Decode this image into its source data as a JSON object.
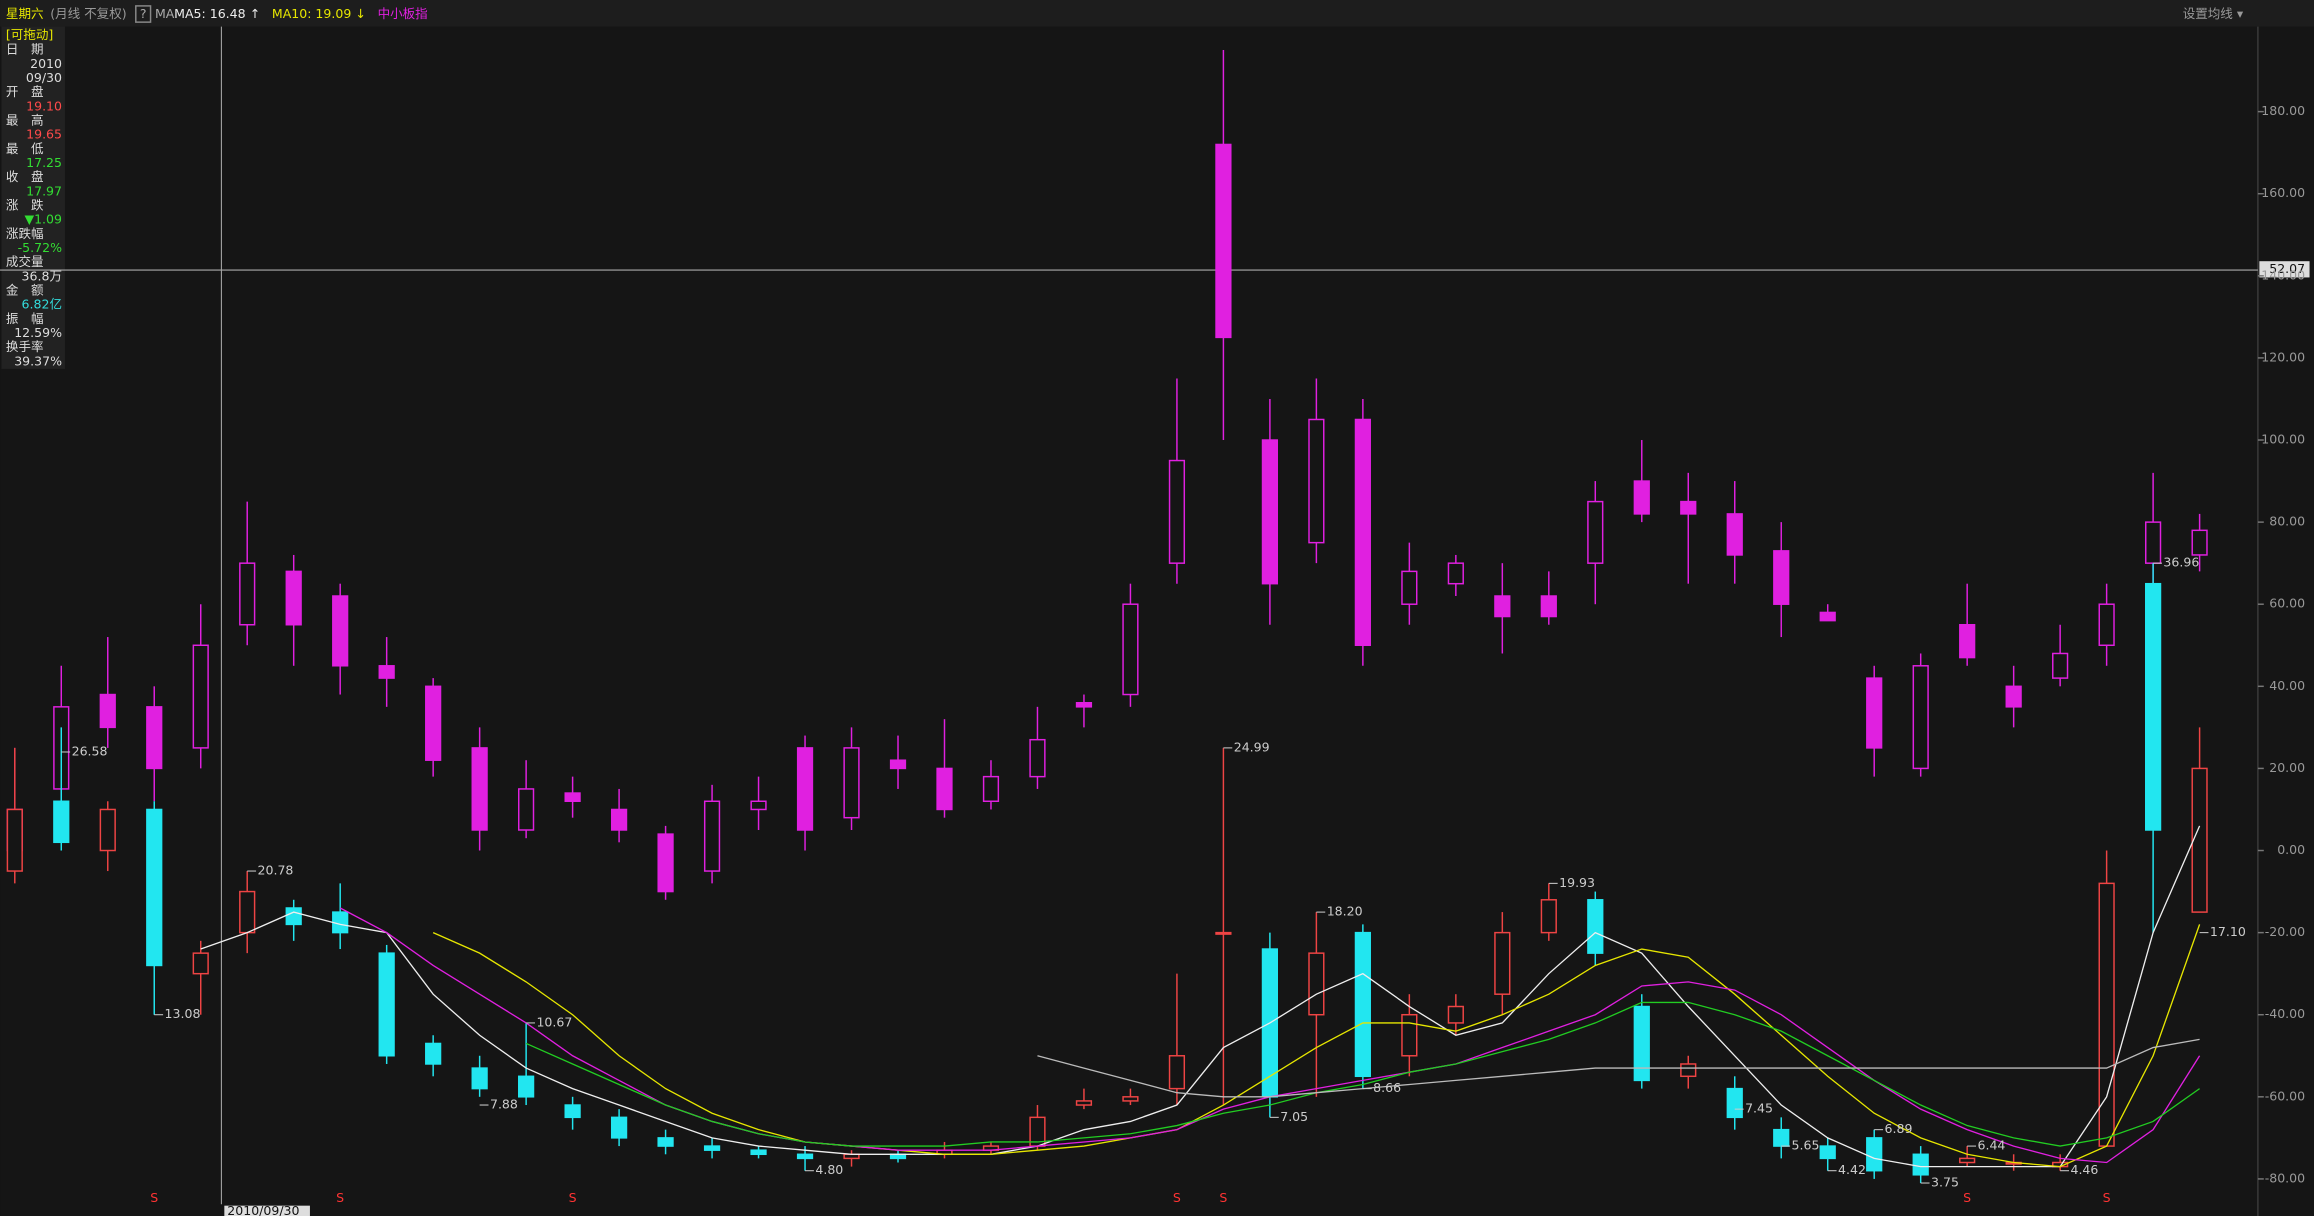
{
  "header": {
    "weekday": "星期六",
    "mode": "(月线 不复权)",
    "help": "?",
    "ma": "MA",
    "settings": "设置均线 ▾"
  },
  "info": {
    "drag": "[可拖动]",
    "items": [
      {
        "label": "日　期",
        "value": "2010",
        "color": "#dddddd"
      },
      {
        "value": "09/30",
        "color": "#dddddd"
      },
      {
        "label": "开　盘",
        "value": "19.10",
        "color": "#ff4a4a"
      },
      {
        "label": "最　高",
        "value": "19.65",
        "color": "#ff4a4a"
      },
      {
        "label": "最　低",
        "value": "17.25",
        "color": "#33dd33"
      },
      {
        "label": "收　盘",
        "value": "17.97",
        "color": "#33dd33"
      },
      {
        "label": "涨　跌",
        "value": "▼1.09",
        "color": "#33dd33"
      },
      {
        "label": "涨跌幅",
        "value": "-5.72%",
        "color": "#33dd33"
      },
      {
        "label": "成交量",
        "value": "36.8万",
        "color": "#dddddd"
      },
      {
        "label": "金　额",
        "value": "6.82亿",
        "color": "#33dddd"
      },
      {
        "label": "振　幅",
        "value": "12.59%",
        "color": "#dddddd"
      },
      {
        "label": "换手率",
        "value": "39.37%",
        "color": "#dddddd"
      }
    ]
  },
  "crosshair": {
    "value": "52.07",
    "date": "2010/09/30"
  },
  "chart_data": {
    "type": "candlestick",
    "ylim": [
      -84,
      200
    ],
    "yticks": [
      {
        "value": 180,
        "label": "180.00"
      },
      {
        "value": 160,
        "label": "160.00"
      },
      {
        "value": 140,
        "label": "140.00"
      },
      {
        "value": 120,
        "label": "120.00"
      },
      {
        "value": 100,
        "label": "100.00"
      },
      {
        "value": 80,
        "label": "80.00"
      },
      {
        "value": 60,
        "label": "60.00"
      },
      {
        "value": 40,
        "label": "40.00"
      },
      {
        "value": 20,
        "label": "20.00"
      },
      {
        "value": 0,
        "label": "0.00"
      },
      {
        "value": -20,
        "label": "-20.00"
      },
      {
        "value": -40,
        "label": "-40.00"
      },
      {
        "value": -60,
        "label": "-60.00"
      },
      {
        "value": -80,
        "label": "-80.00"
      }
    ],
    "candles": [
      {
        "name": "中小板指",
        "up_color": "#e020e0",
        "down_color": "#e020e0",
        "open": [
          0,
          15,
          38,
          35,
          25,
          55,
          68,
          62,
          45,
          40,
          25,
          5,
          14,
          10,
          4,
          -5,
          10,
          25,
          8,
          22,
          20,
          12,
          18,
          36,
          38,
          70,
          172,
          100,
          75,
          105,
          60,
          65,
          62,
          62,
          70,
          90,
          85,
          82,
          73,
          58,
          42,
          20,
          55,
          40,
          42,
          50,
          70,
          72
        ],
        "high": [
          25,
          45,
          52,
          40,
          60,
          85,
          72,
          65,
          52,
          42,
          30,
          22,
          18,
          15,
          6,
          16,
          18,
          28,
          30,
          28,
          32,
          22,
          35,
          38,
          65,
          115,
          195,
          110,
          115,
          110,
          75,
          72,
          70,
          68,
          90,
          100,
          92,
          90,
          80,
          60,
          45,
          48,
          65,
          45,
          55,
          65,
          92,
          82
        ],
        "low": [
          -5,
          10,
          25,
          12,
          20,
          50,
          45,
          38,
          35,
          18,
          0,
          3,
          8,
          2,
          -12,
          -8,
          5,
          0,
          5,
          15,
          8,
          10,
          15,
          30,
          35,
          65,
          100,
          55,
          70,
          45,
          55,
          62,
          48,
          55,
          60,
          80,
          65,
          65,
          52,
          56,
          18,
          18,
          45,
          30,
          40,
          45,
          60,
          68
        ],
        "close": [
          10,
          35,
          30,
          20,
          50,
          70,
          55,
          45,
          42,
          22,
          5,
          15,
          12,
          5,
          -10,
          12,
          12,
          5,
          25,
          20,
          10,
          18,
          27,
          35,
          60,
          95,
          125,
          65,
          105,
          50,
          68,
          70,
          57,
          57,
          85,
          82,
          82,
          72,
          60,
          56,
          25,
          45,
          47,
          35,
          48,
          60,
          80,
          78
        ]
      },
      {
        "up_color": "#ee4444",
        "down_color": "#22e6f0",
        "open": [
          -5,
          12,
          0,
          10,
          -30,
          -20,
          -14,
          -15,
          -25,
          -47,
          -53,
          -55,
          -62,
          -65,
          -70,
          -72,
          -73,
          -74,
          -75,
          -74,
          -74,
          -73,
          -72,
          -62,
          -61,
          -58,
          -20,
          -24,
          -40,
          -20,
          -50,
          -42,
          -35,
          -20,
          -12,
          -38,
          -55,
          -58,
          -68,
          -72,
          -70,
          -74,
          -76,
          -76,
          -77,
          -72,
          65,
          -15
        ],
        "high": [
          25,
          30,
          12,
          12,
          -22,
          -5,
          -12,
          -8,
          -23,
          -45,
          -50,
          -42,
          -60,
          -63,
          -68,
          -70,
          -72,
          -72,
          -73,
          -73,
          -71,
          -71,
          -62,
          -58,
          -58,
          -30,
          25,
          -20,
          -15,
          -18,
          -35,
          -35,
          -15,
          -8,
          -10,
          -35,
          -50,
          -55,
          -65,
          -70,
          -68,
          -72,
          -72,
          -74,
          -74,
          0,
          70,
          30
        ],
        "low": [
          -8,
          0,
          -5,
          -40,
          -40,
          -25,
          -22,
          -24,
          -52,
          -55,
          -60,
          -62,
          -68,
          -72,
          -74,
          -75,
          -75,
          -78,
          -77,
          -76,
          -75,
          -74,
          -73,
          -63,
          -62,
          -62,
          -62,
          -65,
          -60,
          -58,
          -55,
          -45,
          -40,
          -22,
          -28,
          -58,
          -58,
          -68,
          -75,
          -78,
          -80,
          -81,
          -77,
          -78,
          -78,
          -72,
          -20,
          -15
        ],
        "close": [
          10,
          2,
          10,
          -28,
          -25,
          -10,
          -18,
          -20,
          -50,
          -52,
          -58,
          -60,
          -65,
          -70,
          -72,
          -73,
          -74,
          -75,
          -74,
          -75,
          -73,
          -72,
          -65,
          -61,
          -60,
          -50,
          -20,
          -60,
          -25,
          -55,
          -40,
          -38,
          -20,
          -12,
          -25,
          -56,
          -52,
          -65,
          -72,
          -75,
          -78,
          -79,
          -75,
          -76,
          -76,
          -8,
          5,
          20
        ]
      }
    ],
    "lines": [
      {
        "name": "MA5: 16.48 ↑",
        "color": "#eeeeee",
        "values": [
          null,
          null,
          null,
          null,
          -24,
          -20,
          -15,
          -18,
          -20,
          -35,
          -45,
          -53,
          -58,
          -62,
          -66,
          -70,
          -72,
          -73,
          -74,
          -74,
          -74,
          -74,
          -72,
          -68,
          -66,
          -62,
          -48,
          -42,
          -35,
          -30,
          -38,
          -45,
          -42,
          -30,
          -20,
          -25,
          -38,
          -50,
          -62,
          -70,
          -75,
          -77,
          -77,
          -77,
          -77,
          -60,
          -20,
          6
        ]
      },
      {
        "name": "MA10: 19.09 ↓",
        "color": "#e6e600",
        "values": [
          null,
          null,
          null,
          null,
          null,
          null,
          null,
          null,
          null,
          -20,
          -25,
          -32,
          -40,
          -50,
          -58,
          -64,
          -68,
          -71,
          -72,
          -73,
          -74,
          -74,
          -73,
          -72,
          -70,
          -68,
          -62,
          -55,
          -48,
          -42,
          -42,
          -44,
          -40,
          -35,
          -28,
          -24,
          -26,
          -35,
          -45,
          -55,
          -64,
          -70,
          -74,
          -76,
          -77,
          -72,
          -50,
          -18
        ]
      },
      {
        "color": "#e020e0",
        "values": [
          null,
          null,
          null,
          null,
          null,
          null,
          null,
          -14,
          -20,
          -28,
          -35,
          -42,
          -50,
          -56,
          -62,
          -66,
          -69,
          -71,
          -72,
          -73,
          -73,
          -73,
          -72,
          -71,
          -70,
          -68,
          -63,
          -60,
          -58,
          -56,
          -54,
          -52,
          -48,
          -44,
          -40,
          -33,
          -32,
          -34,
          -40,
          -48,
          -56,
          -63,
          -68,
          -72,
          -75,
          -76,
          -68,
          -50
        ]
      },
      {
        "color": "#22cc22",
        "values": [
          null,
          null,
          null,
          null,
          null,
          null,
          null,
          null,
          null,
          null,
          null,
          -47,
          -52,
          -57,
          -62,
          -66,
          -69,
          -71,
          -72,
          -72,
          -72,
          -71,
          -71,
          -70,
          -69,
          -67,
          -64,
          -62,
          -59,
          -57,
          -54,
          -52,
          -49,
          -46,
          -42,
          -37,
          -37,
          -40,
          -44,
          -50,
          -56,
          -62,
          -67,
          -70,
          -72,
          -70,
          -66,
          -58
        ]
      },
      {
        "color": "#bbbbbb",
        "values": [
          null,
          null,
          null,
          null,
          null,
          null,
          null,
          null,
          null,
          null,
          null,
          null,
          null,
          null,
          null,
          null,
          null,
          null,
          null,
          null,
          null,
          null,
          -50,
          -53,
          -56,
          -59,
          -60,
          -60,
          -59,
          -58,
          -57,
          -56,
          -55,
          -54,
          -53,
          -53,
          -53,
          -53,
          -53,
          -53,
          -53,
          -53,
          -53,
          -53,
          -53,
          -53,
          -48,
          -46
        ]
      }
    ],
    "annotations": [
      {
        "text": "26.58",
        "x": 1,
        "y": 24
      },
      {
        "text": "13.08",
        "x": 3,
        "y": -40
      },
      {
        "text": "20.78",
        "x": 5,
        "y": -5
      },
      {
        "text": "10.67",
        "x": 11,
        "y": -42
      },
      {
        "text": "7.88",
        "x": 10,
        "y": -62
      },
      {
        "text": "4.80",
        "x": 17,
        "y": -78
      },
      {
        "text": "24.99",
        "x": 26,
        "y": 25
      },
      {
        "text": "7.05",
        "x": 27,
        "y": -65
      },
      {
        "text": "18.20",
        "x": 28,
        "y": -15
      },
      {
        "text": "8.66",
        "x": 29,
        "y": -58
      },
      {
        "text": "19.93",
        "x": 33,
        "y": -8
      },
      {
        "text": "7.45",
        "x": 37,
        "y": -63
      },
      {
        "text": "5.65",
        "x": 38,
        "y": -72
      },
      {
        "text": "4.42",
        "x": 39,
        "y": -78
      },
      {
        "text": "6.89",
        "x": 40,
        "y": -68
      },
      {
        "text": "3.75",
        "x": 41,
        "y": -81
      },
      {
        "text": "6.44",
        "x": 42,
        "y": -72
      },
      {
        "text": "4.46",
        "x": 44,
        "y": -78
      },
      {
        "text": "36.96",
        "x": 46,
        "y": 70
      },
      {
        "text": "17.10",
        "x": 47,
        "y": -20
      }
    ],
    "signals": [
      {
        "text": "S",
        "x": 3
      },
      {
        "text": "S",
        "x": 7
      },
      {
        "text": "S",
        "x": 12
      },
      {
        "text": "S",
        "x": 25
      },
      {
        "text": "S",
        "x": 26
      },
      {
        "text": "S",
        "x": 42
      },
      {
        "text": "S",
        "x": 45
      }
    ]
  }
}
